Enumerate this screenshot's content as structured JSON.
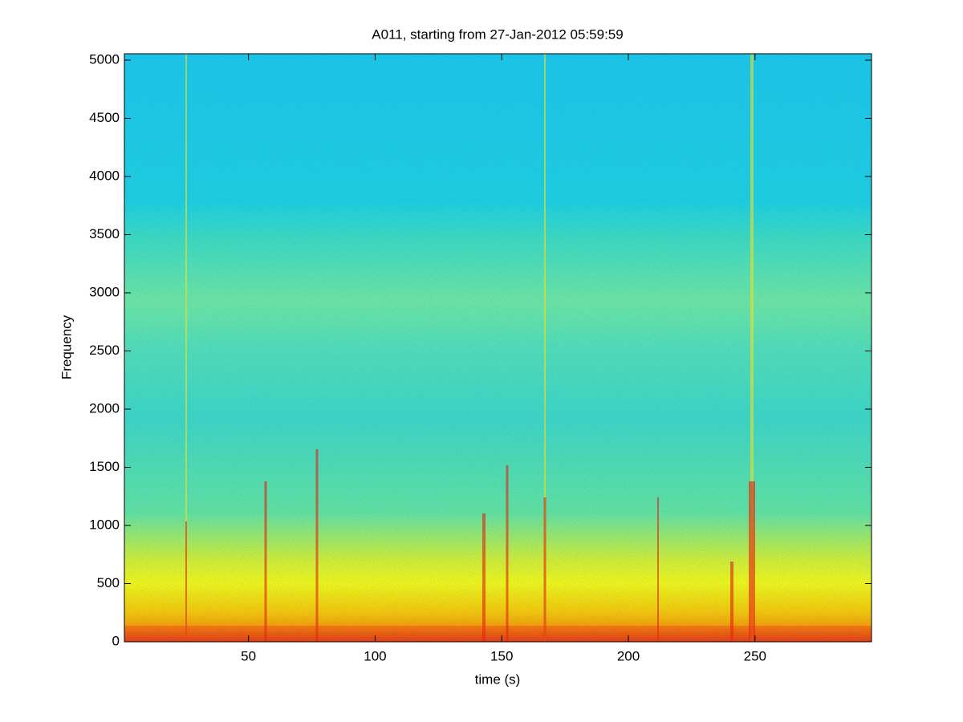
{
  "chart_data": {
    "type": "spectrogram",
    "title": "A011, starting from 27-Jan-2012 05:59:59",
    "x_label": "time (s)",
    "y_label": "Frequency",
    "xlim": [
      1,
      296
    ],
    "xticks": [
      50,
      100,
      150,
      200,
      250
    ],
    "ylim": [
      0,
      5055
    ],
    "yticks": [
      0,
      500,
      1000,
      1500,
      2000,
      2500,
      3000,
      3500,
      4000,
      4500,
      5000
    ]
  }
}
